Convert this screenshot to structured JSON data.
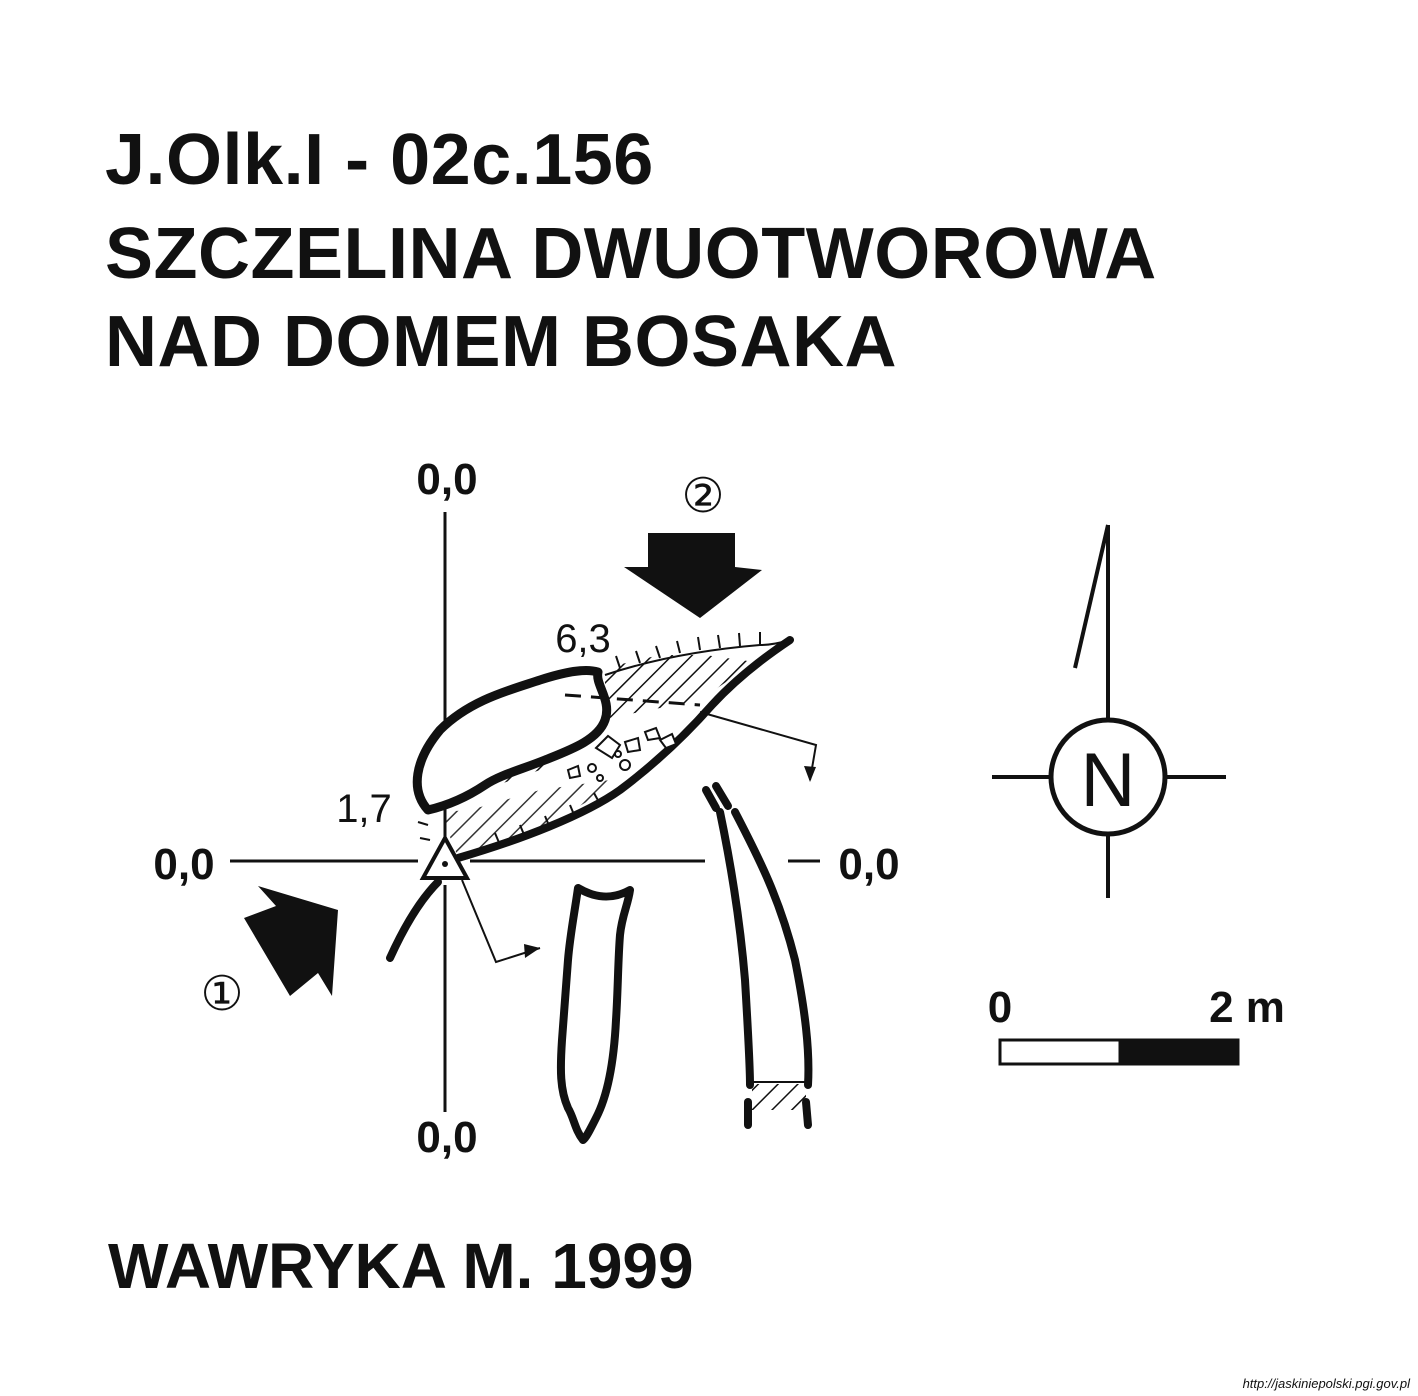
{
  "title": {
    "line1": "J.Olk.I - 02c.156",
    "line2": "SZCZELINA DWUOTWOROWA",
    "line3": "NAD DOMEM BOSAKA"
  },
  "map": {
    "datum_top": "0,0",
    "datum_bottom": "0,0",
    "datum_left": "0,0",
    "datum_right": "0,0",
    "height_label_1": "6,3",
    "height_label_2": "1,7",
    "entrance_1_marker": "①",
    "entrance_2_marker": "②"
  },
  "north_arrow": {
    "label": "N",
    "icon": "north-arrow-icon"
  },
  "scale_bar": {
    "start_label": "0",
    "end_label": "2 m"
  },
  "author": "WAWRYKA M. 1999",
  "source_url": "http://jaskiniepolski.pgi.gov.pl"
}
